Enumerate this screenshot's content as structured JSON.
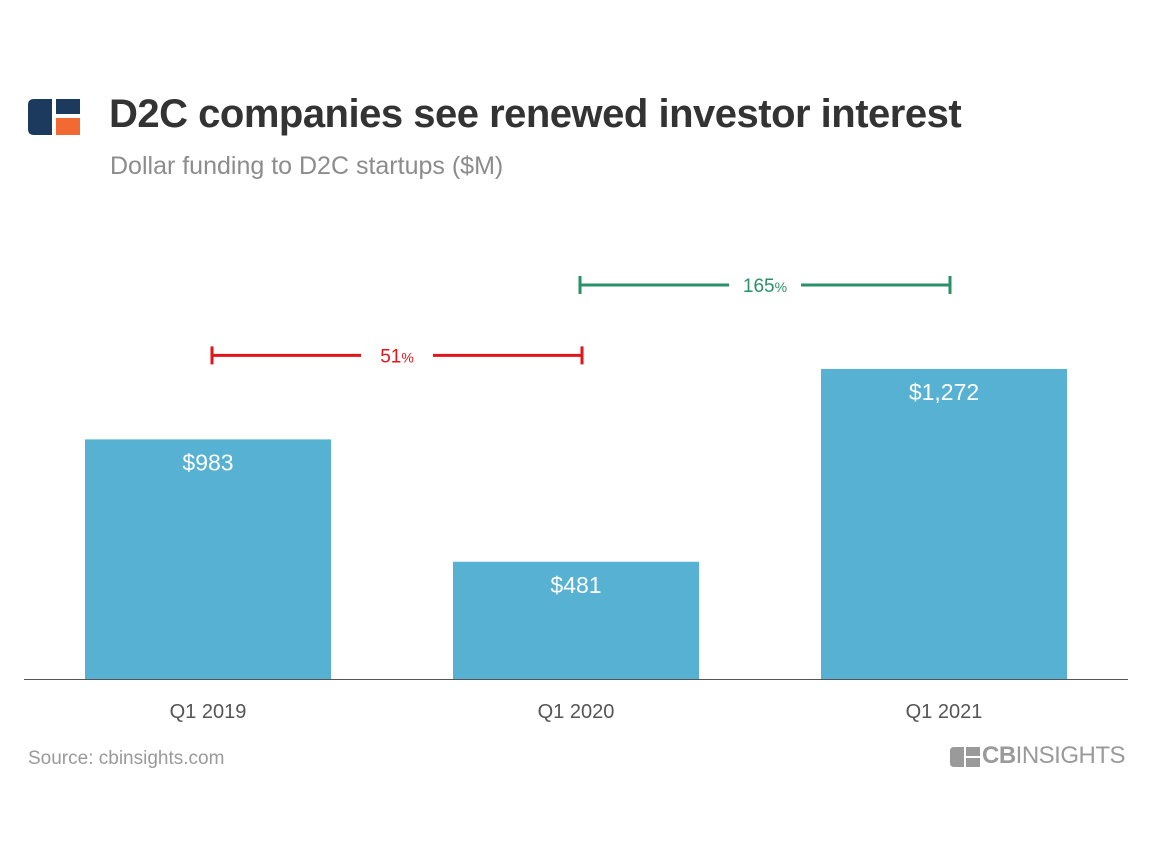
{
  "header": {
    "title": "D2C companies see renewed investor interest",
    "subtitle": "Dollar funding to D2C startups ($M)"
  },
  "footer": {
    "source": "Source: cbinsights.com",
    "brand_bold": "CB",
    "brand_light": "INSIGHTS"
  },
  "colors": {
    "bar": "#56b1d3",
    "decline": "#e2151b",
    "growth": "#2a9167",
    "logo_navy": "#1b3a5e",
    "logo_orange": "#f26a32",
    "label_text": "#555555"
  },
  "chart_data": {
    "type": "bar",
    "categories": [
      "Q1 2019",
      "Q1 2020",
      "Q1 2021"
    ],
    "values": [
      983,
      481,
      1272
    ],
    "value_labels": [
      "$983",
      "$481",
      "$1,272"
    ],
    "ylim": [
      0,
      1280
    ],
    "grid": false,
    "annotations": [
      {
        "from": 0,
        "to": 1,
        "value": "51",
        "unit": "%",
        "kind": "decline"
      },
      {
        "from": 1,
        "to": 2,
        "value": "165",
        "unit": "%",
        "kind": "growth"
      }
    ]
  }
}
